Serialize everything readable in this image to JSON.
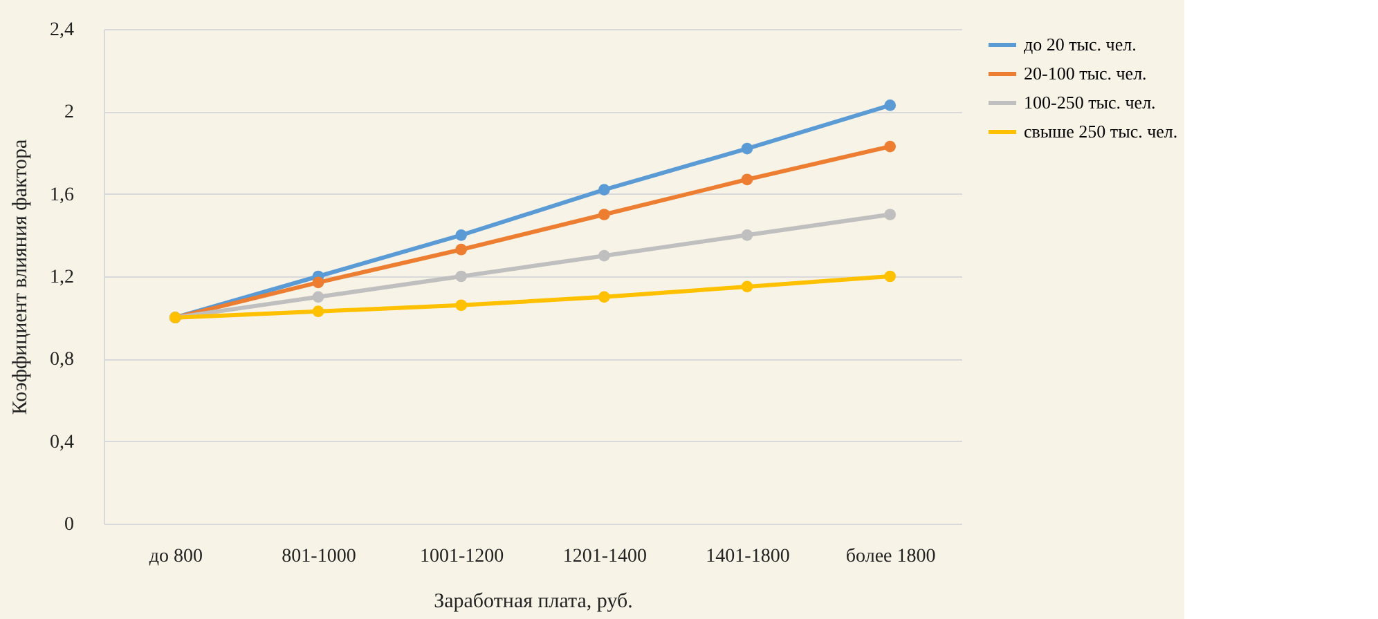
{
  "chart_data": {
    "type": "line",
    "xlabel": "Заработная плата, руб.",
    "ylabel": "Коэффициент влияния фактора",
    "categories": [
      "до 800",
      "801-1000",
      "1001-1200",
      "1201-1400",
      "1401-1800",
      "более 1800"
    ],
    "series": [
      {
        "name": "до 20 тыс. чел.",
        "color": "#5b9bd5",
        "values": [
          1.0,
          1.2,
          1.4,
          1.62,
          1.82,
          2.03
        ]
      },
      {
        "name": "20-100 тыс. чел.",
        "color": "#ed7d31",
        "values": [
          1.0,
          1.17,
          1.33,
          1.5,
          1.67,
          1.83
        ]
      },
      {
        "name": "100-250 тыс. чел.",
        "color": "#bfbfbf",
        "values": [
          1.0,
          1.1,
          1.2,
          1.3,
          1.4,
          1.5
        ]
      },
      {
        "name": "свыше 250 тыс. чел.",
        "color": "#ffc000",
        "values": [
          1.0,
          1.03,
          1.06,
          1.1,
          1.15,
          1.2
        ]
      }
    ],
    "ylim": [
      0,
      2.4
    ],
    "yticks": [
      0,
      {
        "value": 0.4,
        "label": "0,4"
      },
      {
        "value": 0.8,
        "label": "0,8"
      },
      {
        "value": 1.2,
        "label": "1,2"
      },
      {
        "value": 1.6,
        "label": "1,6"
      },
      2,
      {
        "value": 2.4,
        "label": "2,4"
      }
    ],
    "grid": "y",
    "legend": "right",
    "marker": "circle",
    "line_style": "solid"
  }
}
